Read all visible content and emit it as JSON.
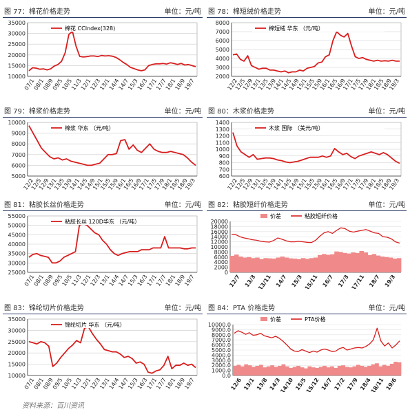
{
  "panels": [
    {
      "title": "图 77：棉花价格走势",
      "unit": "单位：元/吨",
      "chart_data": {
        "type": "line",
        "legend": [
          "棉花 CCIndex(328)"
        ],
        "ylim": [
          10000,
          35000
        ],
        "yticks": [
          "35000",
          "30000",
          "25000",
          "20000",
          "15000",
          "10000"
        ],
        "xticks": [
          "07/1",
          "08/1",
          "08/9",
          "09/5",
          "10/5",
          "11/3",
          "12/1",
          "12/3",
          "13/1",
          "14/4",
          "14/7",
          "15/3",
          "16/3",
          "17/1",
          "17/7",
          "18/1",
          "18/9",
          "19/7"
        ],
        "series": [
          {
            "name": "棉花 CCIndex(328)",
            "values": [
              12600,
              14000,
              13800,
              13300,
              13500,
              13000,
              13500,
              14800,
              15500,
              17000,
              21000,
              29500,
              31000,
              24000,
              19300,
              19000,
              19200,
              19500,
              19500,
              19200,
              19700,
              19500,
              19600,
              19400,
              18800,
              17800,
              16500,
              15500,
              14200,
              13600,
              13000,
              12600,
              13000,
              15000,
              15500,
              15800,
              15800,
              16000,
              15700,
              16300,
              16000,
              15500,
              16000,
              15300,
              15500,
              15000,
              14500
            ]
          }
        ]
      }
    },
    {
      "title": "图 78：棉短绒价格走势",
      "unit": "单位：元/吨",
      "chart_data": {
        "type": "line",
        "legend": [
          "棉短绒 华东 （元/吨）"
        ],
        "ylim": [
          2000,
          8000
        ],
        "yticks": [
          "8000",
          "7000",
          "6000",
          "5000",
          "4000",
          "3000",
          "2000"
        ],
        "xticks": [
          "12/2",
          "12/5",
          "12/9",
          "13/1",
          "13/5",
          "13/9",
          "14/1",
          "14/5",
          "14/9",
          "15/1",
          "15/5",
          "15/9",
          "16/1",
          "16/5",
          "16/9",
          "17/1",
          "17/5",
          "17/9",
          "18/1",
          "18/5",
          "18/9",
          "19/3"
        ],
        "series": [
          {
            "name": "棉短绒 华东 （元/吨）",
            "values": [
              4400,
              4500,
              3900,
              3700,
              4300,
              3200,
              3000,
              2800,
              2900,
              2900,
              2700,
              2700,
              2600,
              2500,
              2600,
              2400,
              2500,
              2500,
              2700,
              2600,
              2900,
              3000,
              3100,
              3500,
              3600,
              4200,
              4400,
              6000,
              7000,
              6600,
              6400,
              6800,
              5400,
              4200,
              4000,
              4100,
              3900,
              3800,
              3700,
              3800,
              3700,
              3750,
              3700,
              3800,
              3700,
              3700
            ]
          }
        ]
      }
    },
    {
      "title": "图 79：棉浆价格走势",
      "unit": "单位：元/吨",
      "chart_data": {
        "type": "line",
        "legend": [
          "棉浆 华东 （元/吨）"
        ],
        "ylim": [
          5000,
          10000
        ],
        "yticks": [
          "10000",
          "9000",
          "8000",
          "7000",
          "6000",
          "5000"
        ],
        "xticks": [
          "12/2",
          "12/5",
          "12/9",
          "13/1",
          "13/5",
          "13/9",
          "14/1",
          "14/5",
          "14/9",
          "15/1",
          "15/5",
          "15/9",
          "16/1",
          "16/5",
          "16/9",
          "17/1",
          "17/5",
          "17/9",
          "18/1",
          "18/5",
          "18/9",
          "19/3"
        ],
        "series": [
          {
            "name": "棉浆 华东 （元/吨）",
            "values": [
              9700,
              9000,
              8300,
              7600,
              7200,
              6800,
              6600,
              6700,
              6500,
              6600,
              6400,
              6300,
              6200,
              6100,
              6000,
              6000,
              6100,
              6200,
              6600,
              7000,
              7000,
              7100,
              8300,
              8400,
              7500,
              7900,
              7400,
              7200,
              7600,
              8000,
              7500,
              7300,
              7200,
              7200,
              7300,
              7200,
              7100,
              7000,
              6700,
              6300,
              6000
            ]
          }
        ]
      }
    },
    {
      "title": "图 80：木浆价格走势",
      "unit": "单位：元/吨",
      "chart_data": {
        "type": "line",
        "legend": [
          "木浆 国际 （美元/吨）"
        ],
        "ylim": [
          600,
          1400
        ],
        "yticks": [
          "1400",
          "1300",
          "1200",
          "1100",
          "1000",
          "900",
          "800",
          "700",
          "600"
        ],
        "xticks": [
          "12/2",
          "12/5",
          "12/9",
          "13/1",
          "13/5",
          "13/9",
          "14/1",
          "14/5",
          "14/9",
          "15/1",
          "15/5",
          "15/9",
          "16/1",
          "16/5",
          "16/9",
          "17/1",
          "17/5",
          "17/9",
          "18/1",
          "18/5",
          "18/9",
          "19/3"
        ],
        "series": [
          {
            "name": "木浆 国际 （美元/吨）",
            "values": [
              1250,
              1050,
              960,
              920,
              880,
              920,
              850,
              860,
              870,
              870,
              860,
              840,
              830,
              810,
              800,
              810,
              820,
              840,
              860,
              880,
              880,
              880,
              900,
              880,
              900,
              1010,
              960,
              920,
              940,
              890,
              860,
              900,
              920,
              940,
              960,
              940,
              920,
              950,
              920,
              870,
              820,
              790
            ]
          }
        ]
      }
    },
    {
      "title": "图 81：粘胶长丝价格走势",
      "unit": "单位：元/吨",
      "chart_data": {
        "type": "line",
        "legend": [
          "粘胶长丝 120D华东 （元/吨）"
        ],
        "ylim": [
          25000,
          55000
        ],
        "yticks": [
          "55000",
          "50000",
          "45000",
          "40000",
          "35000",
          "30000",
          "25000"
        ],
        "xticks": [
          "07/1",
          "08/1",
          "08/9",
          "09/5",
          "10/5",
          "11/3",
          "12/1",
          "12/3",
          "13/1",
          "14/4",
          "14/7",
          "15/3",
          "16/3",
          "17/1",
          "17/7",
          "18/1",
          "18/9",
          "19/7"
        ],
        "series": [
          {
            "name": "粘胶长丝 120D华东 （元/吨）",
            "values": [
              33000,
              34500,
              35000,
              34000,
              33500,
              33000,
              30000,
              30000,
              31000,
              33000,
              34000,
              35000,
              36000,
              50000,
              51000,
              50000,
              48000,
              46000,
              45000,
              42000,
              40000,
              37000,
              35000,
              34000,
              35000,
              35500,
              36000,
              36000,
              36000,
              37000,
              37000,
              37000,
              38000,
              38000,
              38000,
              44000,
              38000,
              38000,
              38000,
              38000,
              37500,
              37500,
              38000,
              38000
            ]
          }
        ]
      }
    },
    {
      "title": "图 82：粘胶短纤价格走势",
      "unit": "单位：元/吨",
      "chart_data": {
        "type": "bar+line",
        "legend": [
          "价差",
          "粘胶短纤价格"
        ],
        "ylim": [
          0,
          20000
        ],
        "yticks": [
          "20000",
          "18000",
          "16000",
          "14000",
          "12000",
          "10000",
          "8000",
          "6000",
          "4000",
          "2000",
          "0"
        ],
        "xticks": [
          "12/7",
          "13/3",
          "13/11",
          "14/7",
          "15/3",
          "15/11",
          "16/7",
          "17/3",
          "17/11",
          "18/7",
          "19/3"
        ],
        "series": [
          {
            "name": "粘胶短纤价格",
            "values": [
              15000,
              14800,
              14000,
              13500,
              13200,
              12800,
              12600,
              12200,
              12000,
              11900,
              12500,
              13500,
              13000,
              12400,
              12000,
              12000,
              12200,
              12000,
              11800,
              11700,
              12600,
              14200,
              15500,
              16000,
              15300,
              16500,
              17500,
              17200,
              16200,
              15800,
              16200,
              16500,
              16800,
              16200,
              15500,
              15300,
              14000,
              13800,
              13200,
              12000,
              11500
            ]
          },
          {
            "name": "价差",
            "values": [
              6500,
              7000,
              6200,
              5800,
              6000,
              5600,
              5800,
              5200,
              5600,
              5500,
              5400,
              5800,
              6200,
              5800,
              5500,
              5400,
              5200,
              5600,
              5300,
              5600,
              5800,
              6800,
              7200,
              6900,
              7100,
              8200,
              8000,
              7600,
              7400,
              7800,
              7600,
              8400,
              7800,
              6800,
              7200,
              6600,
              6200,
              6000,
              5800,
              5400,
              5600
            ]
          }
        ]
      }
    },
    {
      "title": "图 83：锦纶切片价格走势",
      "unit": "单位：元/吨",
      "chart_data": {
        "type": "line",
        "legend": [
          "锦纶切片 华东 （元/吨）"
        ],
        "ylim": [
          10000,
          35000
        ],
        "yticks": [
          "35000",
          "30000",
          "25000",
          "20000",
          "15000",
          "10000"
        ],
        "xticks": [
          "07/1",
          "08/1",
          "08/9",
          "09/5",
          "10/5",
          "11/3",
          "12/1",
          "12/3",
          "13/1",
          "14/4",
          "14/7",
          "15/3",
          "16/3",
          "17/1",
          "17/7",
          "18/1",
          "18/9",
          "19/7"
        ],
        "series": [
          {
            "name": "锦纶切片 华东 （元/吨）",
            "values": [
              25000,
              24500,
              24000,
              25000,
              24500,
              23000,
              14000,
              15500,
              18000,
              20000,
              22000,
              23500,
              25500,
              24500,
              31000,
              31500,
              28500,
              26000,
              24000,
              21500,
              21000,
              20500,
              20500,
              19500,
              18000,
              18500,
              17500,
              15500,
              16000,
              15000,
              11500,
              11000,
              12000,
              12500,
              14500,
              18500,
              13000,
              14500,
              14500,
              15500,
              14500,
              15000,
              13500
            ]
          }
        ]
      }
    },
    {
      "title": "图 84：PTA 价格走势",
      "unit": "单位：元/吨",
      "chart_data": {
        "type": "bar+line",
        "legend": [
          "价差",
          "PTA价格"
        ],
        "ylim": [
          0,
          10000
        ],
        "yticks": [
          "10000.0",
          "9000.0",
          "8000.0",
          "7000.0",
          "6000.0",
          "5000.0",
          "4000.0",
          "3000.0",
          "2000.0",
          "1000.0",
          "0.0"
        ],
        "xticks": [
          "12/6",
          "13/1",
          "13/8",
          "14/3",
          "14/10",
          "15/5",
          "15/12",
          "16/7",
          "17/2",
          "17/9",
          "18/4",
          "18/11",
          "19/6"
        ],
        "series": [
          {
            "name": "PTA价格",
            "values": [
              8300,
              8800,
              8500,
              8100,
              8400,
              7900,
              8000,
              8300,
              7800,
              7600,
              7400,
              7700,
              7300,
              6700,
              6000,
              5200,
              4800,
              4700,
              5100,
              4800,
              4500,
              4800,
              4600,
              5000,
              5200,
              5000,
              4700,
              4800,
              5300,
              5500,
              5000,
              5200,
              5400,
              5500,
              5400,
              5700,
              6200,
              7000,
              9300,
              6800,
              5800,
              6400,
              5400,
              6000,
              6800
            ]
          },
          {
            "name": "价差",
            "values": [
              1900,
              2100,
              1800,
              2200,
              2000,
              1700,
              1900,
              2100,
              1600,
              1800,
              2000,
              1700,
              1900,
              2200,
              1800,
              1500,
              1700,
              1900,
              1600,
              1400,
              1800,
              1600,
              1500,
              1700,
              1900,
              1600,
              1800,
              1500,
              1900,
              2000,
              1700,
              1600,
              1800,
              2100,
              1900,
              1700,
              1900,
              2200,
              2400,
              1800,
              2100,
              1900,
              2300,
              2700,
              2600
            ]
          }
        ]
      }
    }
  ],
  "source": "资料来源：百川资讯",
  "colors": {
    "line": "#d81e1e",
    "bar": "#f08a8a",
    "axis": "#333333",
    "grid": "#cccccc",
    "header_rule": "#2b3a67"
  }
}
